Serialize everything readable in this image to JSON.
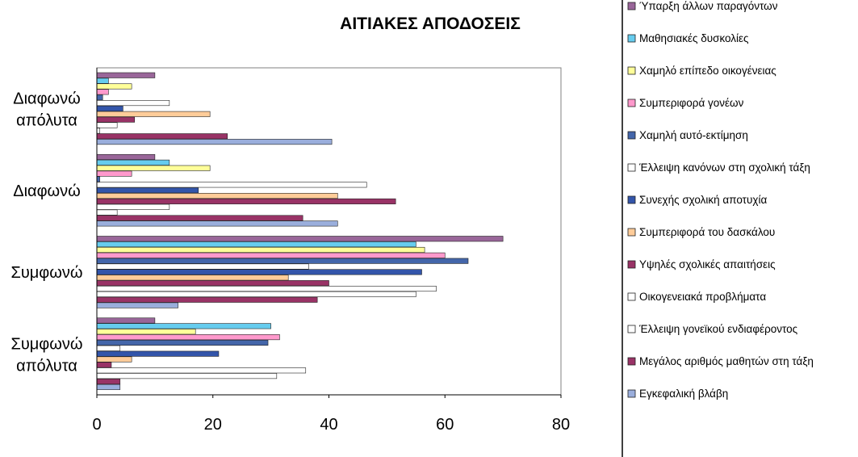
{
  "chart_data": {
    "type": "bar",
    "orientation": "horizontal",
    "title": "ΑΙΤΙΑΚΕΣ ΑΠΟΔΟΣΕΙΣ",
    "categories": [
      "Διαφωνώ απόλυτα",
      "Διαφωνώ",
      "Συμφωνώ",
      "Συμφωνώ απόλυτα"
    ],
    "xlim": [
      0,
      80
    ],
    "xticks": [
      0,
      20,
      40,
      60,
      80
    ],
    "grid": false,
    "legend_position": "right",
    "series": [
      {
        "name": "Εγκεφαλική βλάβη",
        "color": "#9aaedc",
        "values": [
          40.5,
          41.5,
          14,
          4
        ]
      },
      {
        "name": "Μεγάλος αριθμός μαθητών στη τάξη",
        "color": "#993366",
        "values": [
          22.5,
          35.5,
          38,
          4
        ]
      },
      {
        "name": "Έλλειψη γονεϊκού ενδιαφέροντος",
        "color": "#ffffff",
        "values": [
          0.5,
          3.5,
          55,
          31
        ]
      },
      {
        "name": "Οικογενειακά προβλήματα",
        "color": "#ffffff",
        "values": [
          3.5,
          12.5,
          58.5,
          36
        ]
      },
      {
        "name": "Υψηλές σχολικές απαιτήσεις",
        "color": "#993366",
        "values": [
          6.5,
          51.5,
          40,
          2.5
        ]
      },
      {
        "name": "Συμπεριφορά του δασκάλου",
        "color": "#ffcc99",
        "values": [
          19.5,
          41.5,
          33,
          6
        ]
      },
      {
        "name": "Συνεχής σχολική αποτυχία",
        "color": "#3355aa",
        "values": [
          4.5,
          17.5,
          56,
          21
        ]
      },
      {
        "name": "Έλλειψη κανόνων στη σχολική τάξη",
        "color": "#ffffff",
        "values": [
          12.5,
          46.5,
          36.5,
          4
        ]
      },
      {
        "name": "Χαμηλή αυτό-εκτίμηση",
        "color": "#4466aa",
        "values": [
          1,
          0.5,
          64,
          29.5
        ]
      },
      {
        "name": "Συμπεριφορά γονέων",
        "color": "#ff99cc",
        "values": [
          2,
          6,
          60,
          31.5
        ]
      },
      {
        "name": "Χαμηλό επίπεδο οικογένειας",
        "color": "#ffff99",
        "values": [
          6,
          19.5,
          56.5,
          17
        ]
      },
      {
        "name": "Μαθησιακές δυσκολίες",
        "color": "#66ccee",
        "values": [
          2,
          12.5,
          55,
          30
        ]
      },
      {
        "name": "Ύπαρξη άλλων παραγόντων",
        "color": "#996699",
        "values": [
          10,
          10,
          70,
          10
        ]
      }
    ]
  }
}
